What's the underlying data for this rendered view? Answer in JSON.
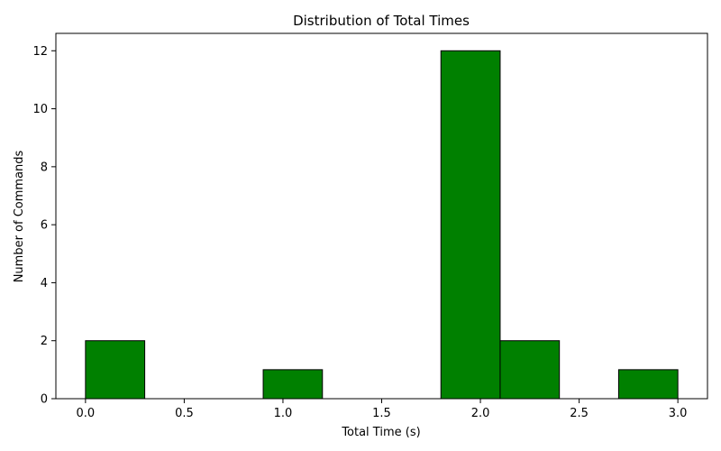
{
  "chart_data": {
    "type": "bar",
    "title": "Distribution of Total Times",
    "xlabel": "Total Time (s)",
    "ylabel": "Number of Commands",
    "xlim": [
      -0.15,
      3.15
    ],
    "ylim": [
      0,
      12.6
    ],
    "xticks": [
      0.0,
      0.5,
      1.0,
      1.5,
      2.0,
      2.5,
      3.0
    ],
    "xtick_labels": [
      "0.0",
      "0.5",
      "1.0",
      "1.5",
      "2.0",
      "2.5",
      "3.0"
    ],
    "yticks": [
      0,
      2,
      4,
      6,
      8,
      10,
      12
    ],
    "ytick_labels": [
      "0",
      "2",
      "4",
      "6",
      "8",
      "10",
      "12"
    ],
    "bin_edges": [
      0.0,
      0.3,
      0.6,
      0.9,
      1.2,
      1.5,
      1.8,
      2.1,
      2.4,
      2.7,
      3.0
    ],
    "values": [
      2,
      0,
      0,
      1,
      0,
      0,
      12,
      2,
      0,
      1
    ],
    "grid": false,
    "bar_color": "#008000",
    "edge_color": "#000000"
  }
}
